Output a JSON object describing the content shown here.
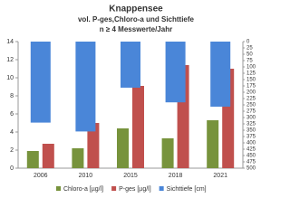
{
  "chart_data": {
    "type": "bar",
    "title": "Knappensee",
    "subtitle": "vol. P-ges,Chloro-a und Sichttiefe",
    "subtitle2": "n ≥ 4 Messwerte/Jahr",
    "categories": [
      "2006",
      "2010",
      "2015",
      "2018",
      "2021"
    ],
    "series": [
      {
        "name": "Chloro-a [µg/l]",
        "color": "#77933c",
        "values": [
          1.9,
          2.2,
          4.4,
          3.3,
          5.3
        ]
      },
      {
        "name": "P-ges [µg/l]",
        "color": "#c0504d",
        "values": [
          2.7,
          5.0,
          9.1,
          11.4,
          11.0
        ]
      },
      {
        "name": "Sichttiefe [cm]",
        "color": "#4a86d8",
        "axis": "y2",
        "values": [
          320,
          355,
          182,
          240,
          257
        ]
      }
    ],
    "ylim": [
      0,
      14
    ],
    "yticks": [
      0,
      2,
      4,
      6,
      8,
      10,
      12,
      14
    ],
    "y2lim": [
      0,
      500
    ],
    "y2_reversed": true,
    "y2ticks": [
      0,
      25,
      50,
      75,
      100,
      125,
      150,
      175,
      200,
      225,
      250,
      275,
      300,
      325,
      350,
      375,
      400,
      425,
      450,
      475,
      500
    ],
    "legend": "bottom"
  }
}
